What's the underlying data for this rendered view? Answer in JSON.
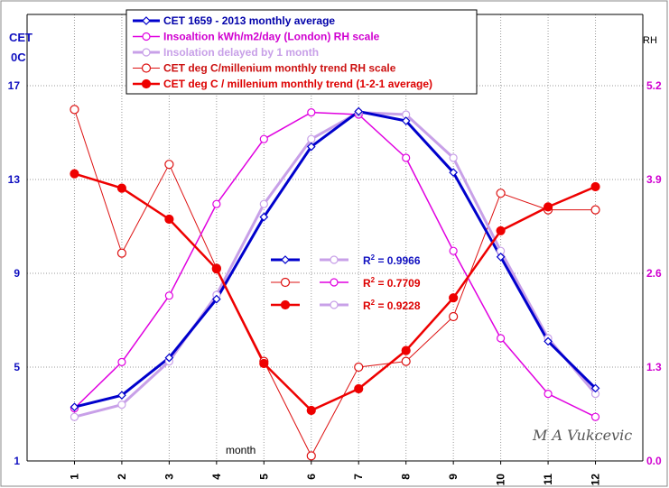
{
  "chart_data": {
    "type": "line",
    "categories": [
      "1",
      "2",
      "3",
      "4",
      "5",
      "6",
      "7",
      "8",
      "9",
      "10",
      "11",
      "12"
    ],
    "xlabel": "month",
    "ylabel_left": "CET",
    "ylabel_left_unit": "0C",
    "ylabel_right": "RH",
    "left_ticks": [
      "1",
      "5",
      "9",
      "13",
      "17"
    ],
    "right_ticks": [
      "0.0",
      "1.3",
      "2.6",
      "3.9",
      "5.2"
    ],
    "ylim_left": [
      1,
      17
    ],
    "ylim_right": [
      0,
      5.2
    ],
    "grid": true,
    "legend_position": "top",
    "series": [
      {
        "name": "CET 1659  - 2013 monthly average",
        "axis": "left",
        "color": "#0000cc",
        "values": [
          3.3,
          3.8,
          5.4,
          7.9,
          11.4,
          14.4,
          15.9,
          15.5,
          13.3,
          9.7,
          6.1,
          4.1
        ]
      },
      {
        "name": "Insoaltion  kWh/m2/day  (London) RH scale",
        "axis": "right",
        "color": "#e000e0",
        "values": [
          0.73,
          1.37,
          2.29,
          3.56,
          4.46,
          4.83,
          4.8,
          4.2,
          2.91,
          1.7,
          0.93,
          0.61
        ]
      },
      {
        "name": "Insolation delayed by 1 month",
        "axis": "right",
        "color": "#c8a0e8",
        "values": [
          0.61,
          0.78,
          1.38,
          2.3,
          3.56,
          4.46,
          4.83,
          4.8,
          4.2,
          2.91,
          1.7,
          0.93
        ]
      },
      {
        "name": "CET deg C/millenium monthly trend  RH scale",
        "axis": "right",
        "color": "#dd1111",
        "values": [
          4.87,
          2.88,
          4.11,
          2.67,
          1.38,
          0.07,
          1.3,
          1.38,
          2.0,
          3.71,
          3.48,
          3.48
        ]
      },
      {
        "name": "CET  deg C / millenium monthly trend  (1-2-1 average)",
        "axis": "right",
        "color": "#ee0000",
        "values": [
          3.98,
          3.78,
          3.35,
          2.66,
          1.35,
          0.7,
          1.0,
          1.53,
          2.26,
          3.19,
          3.52,
          3.8
        ]
      }
    ],
    "annotations": [
      {
        "label": "R",
        "sup": "2",
        "value": "= 0.9966"
      },
      {
        "label": "R",
        "sup": "2",
        "value": "= 0.7709"
      },
      {
        "label": "R",
        "sup": "2",
        "value": "= 0.9228"
      }
    ],
    "author": "M A Vukcevic"
  }
}
